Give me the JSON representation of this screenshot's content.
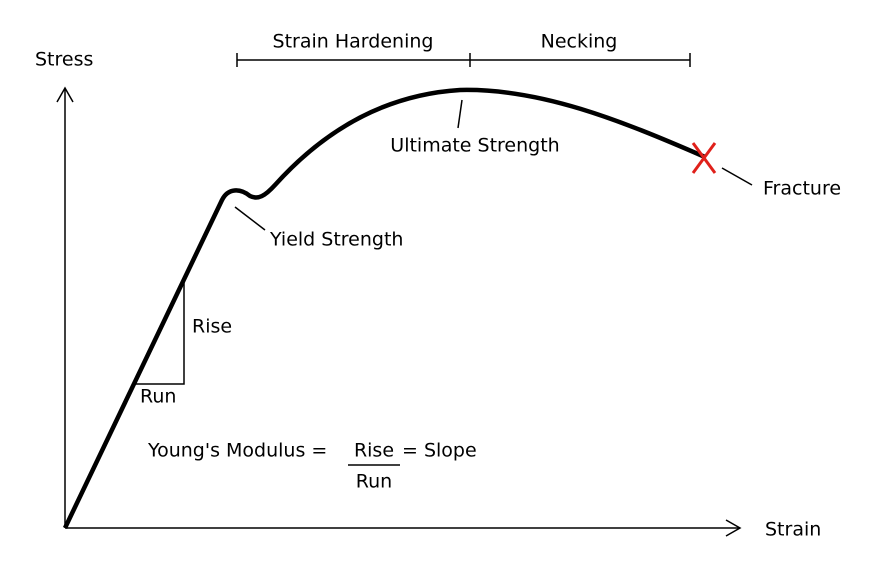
{
  "axes": {
    "y_label": "Stress",
    "x_label": "Strain"
  },
  "regions": {
    "strain_hardening": "Strain Hardening",
    "necking": "Necking"
  },
  "points": {
    "ultimate": "Ultimate Strength",
    "fracture": "Fracture",
    "yield": "Yield Strength"
  },
  "slope_triangle": {
    "rise": "Rise",
    "run": "Run"
  },
  "formula": {
    "lhs": "Young's Modulus =",
    "numerator": "Rise",
    "denominator": "Run",
    "rhs": "= Slope"
  }
}
